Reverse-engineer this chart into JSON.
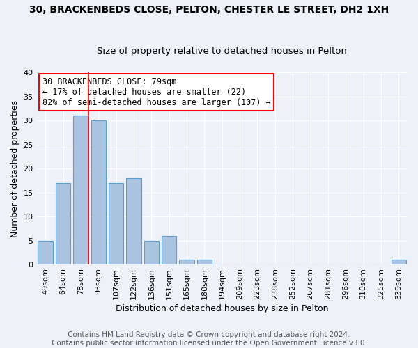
{
  "title": "30, BRACKENBEDS CLOSE, PELTON, CHESTER LE STREET, DH2 1XH",
  "subtitle": "Size of property relative to detached houses in Pelton",
  "xlabel": "Distribution of detached houses by size in Pelton",
  "ylabel": "Number of detached properties",
  "xlabels": [
    "49sqm",
    "64sqm",
    "78sqm",
    "93sqm",
    "107sqm",
    "122sqm",
    "136sqm",
    "151sqm",
    "165sqm",
    "180sqm",
    "194sqm",
    "209sqm",
    "223sqm",
    "238sqm",
    "252sqm",
    "267sqm",
    "281sqm",
    "296sqm",
    "310sqm",
    "325sqm",
    "339sqm"
  ],
  "bar_values": [
    5,
    17,
    31,
    30,
    17,
    18,
    5,
    6,
    1,
    1,
    0,
    0,
    0,
    0,
    0,
    0,
    0,
    0,
    0,
    0,
    1
  ],
  "bar_color": "#aac4e0",
  "bar_edge_color": "#5a9fd4",
  "red_line_index": 2,
  "ylim": [
    0,
    40
  ],
  "yticks": [
    0,
    5,
    10,
    15,
    20,
    25,
    30,
    35,
    40
  ],
  "annotation_line1": "30 BRACKENBEDS CLOSE: 79sqm",
  "annotation_line2": "← 17% of detached houses are smaller (22)",
  "annotation_line3": "82% of semi-detached houses are larger (107) →",
  "footer_line1": "Contains HM Land Registry data © Crown copyright and database right 2024.",
  "footer_line2": "Contains public sector information licensed under the Open Government Licence v3.0.",
  "background_color": "#eef2f8",
  "grid_color": "#ffffff",
  "title_fontsize": 10,
  "subtitle_fontsize": 9.5,
  "axis_label_fontsize": 9,
  "tick_fontsize": 8,
  "footer_fontsize": 7.5
}
